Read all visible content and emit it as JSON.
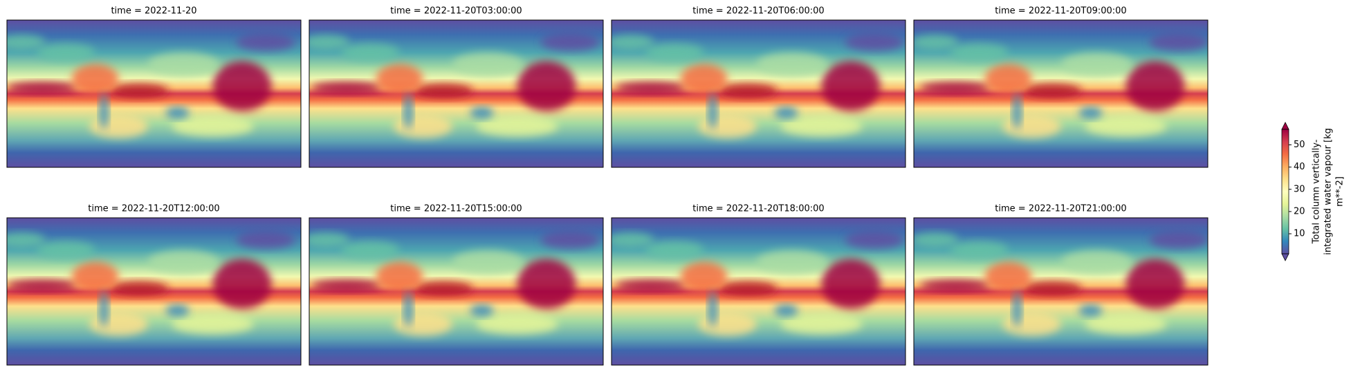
{
  "chart_data": {
    "type": "image_grid",
    "panel_titles": [
      "time = 2022-11-20",
      "time = 2022-11-20T03:00:00",
      "time = 2022-11-20T06:00:00",
      "time = 2022-11-20T09:00:00",
      "time = 2022-11-20T12:00:00",
      "time = 2022-11-20T15:00:00",
      "time = 2022-11-20T18:00:00",
      "time = 2022-11-20T21:00:00"
    ],
    "colorbar_label": [
      "Total column vertically-",
      "integrated water vapour [kg",
      "m**-2]"
    ],
    "ylim": [
      1,
      57
    ],
    "yticks": [
      10,
      20,
      30,
      40,
      50
    ],
    "extend": "both",
    "colormap_colors": [
      "#5e4fa2",
      "#3288bd",
      "#66c2a5",
      "#abdda4",
      "#e6f598",
      "#ffffbf",
      "#fee08b",
      "#fdae61",
      "#f46d43",
      "#d53e4f",
      "#9e0142"
    ]
  }
}
